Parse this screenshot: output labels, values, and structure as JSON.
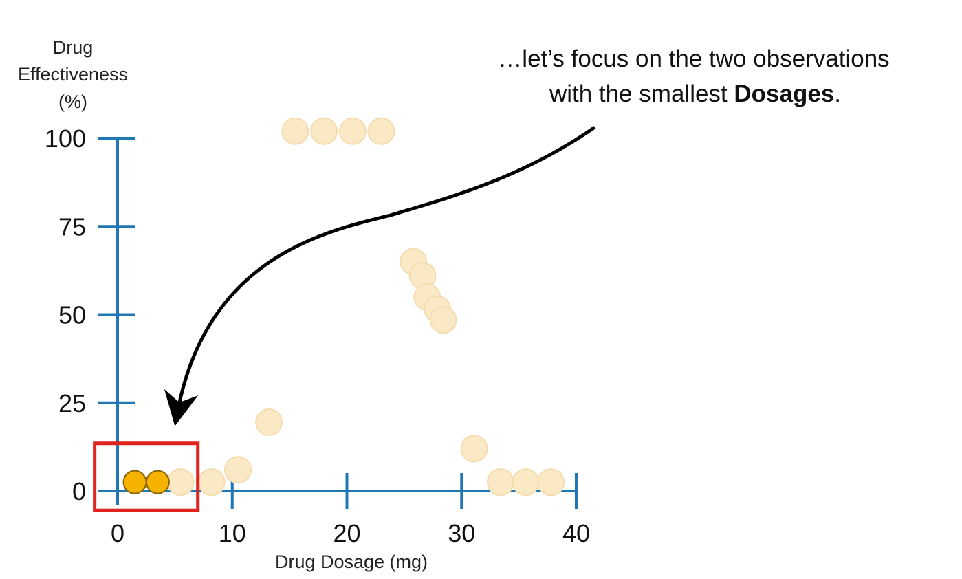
{
  "chart_data": {
    "type": "scatter",
    "title": "",
    "xlabel": "Drug Dosage (mg)",
    "ylabel_lines": [
      "Drug",
      "Effectiveness",
      "(%)"
    ],
    "xlim": [
      0,
      40
    ],
    "ylim": [
      0,
      100
    ],
    "x_ticks": [
      0,
      10,
      20,
      30,
      40
    ],
    "y_ticks": [
      0,
      25,
      50,
      75,
      100
    ],
    "grid": false,
    "legend": "none",
    "colors": {
      "axis": "#1f78b4",
      "highlight_fill": "#f5b300",
      "highlight_stroke": "#8a6400",
      "faded_fill": "#fbe9c6",
      "faded_stroke": "#f3ddb0",
      "box": "#e0231c",
      "arrow": "#000000"
    },
    "highlighted_points": [
      {
        "x": 1.5,
        "y": 2.5
      },
      {
        "x": 3.5,
        "y": 2.5
      }
    ],
    "faded_points": [
      {
        "x": 5.5,
        "y": 2.5
      },
      {
        "x": 8.2,
        "y": 2.5
      },
      {
        "x": 10.5,
        "y": 6
      },
      {
        "x": 13.2,
        "y": 19.5
      },
      {
        "x": 15.5,
        "y": 102
      },
      {
        "x": 18,
        "y": 102
      },
      {
        "x": 20.5,
        "y": 102
      },
      {
        "x": 23,
        "y": 102
      },
      {
        "x": 25.8,
        "y": 65
      },
      {
        "x": 26.6,
        "y": 61
      },
      {
        "x": 27,
        "y": 55
      },
      {
        "x": 27.9,
        "y": 51.5
      },
      {
        "x": 28.4,
        "y": 48.5
      },
      {
        "x": 31.1,
        "y": 12
      },
      {
        "x": 33.4,
        "y": 2.5
      },
      {
        "x": 35.6,
        "y": 2.5
      },
      {
        "x": 37.8,
        "y": 2.5
      }
    ],
    "highlight_box": {
      "x_range": [
        -2,
        7
      ],
      "y_range": [
        -5.5,
        13.5
      ]
    },
    "annotations": {
      "line1": "…let’s focus on the two observations",
      "line2_prefix": "with the smallest ",
      "line2_bold": "Dosages",
      "line2_suffix": "."
    }
  }
}
